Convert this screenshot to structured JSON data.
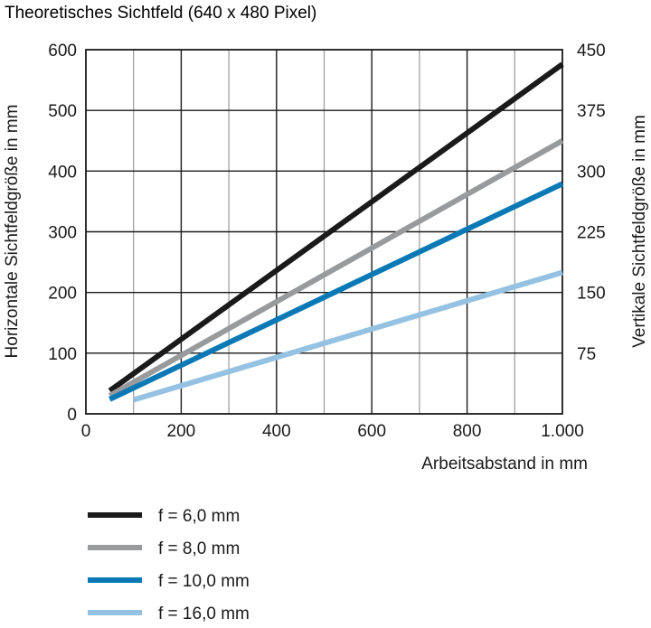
{
  "chart_data": {
    "type": "line",
    "title": "Theoretisches Sichtfeld (640 x 480 Pixel)",
    "xlabel": "Arbeitsabstand in mm",
    "ylabel": "Horizontale Sichtfeldgröße in mm",
    "y2label": "Vertikale Sichtfeldgröße in mm",
    "xlim": [
      0,
      1000
    ],
    "ylim": [
      0,
      600
    ],
    "y2lim": [
      0,
      450
    ],
    "x_ticks": [
      "0",
      "200",
      "400",
      "600",
      "800",
      "1.000"
    ],
    "y_ticks": [
      "0",
      "100",
      "200",
      "300",
      "400",
      "500",
      "600"
    ],
    "y2_ticks": [
      "75",
      "150",
      "225",
      "300",
      "375",
      "450"
    ],
    "grid": true,
    "legend_position": "bottom-left",
    "series": [
      {
        "name": "f = 6,0 mm",
        "color": "#1a1a1a",
        "x": [
          50,
          1000
        ],
        "y": [
          38,
          576
        ]
      },
      {
        "name": "f = 8,0 mm",
        "color": "#999a9c",
        "x": [
          50,
          1000
        ],
        "y": [
          30,
          450
        ]
      },
      {
        "name": "f = 10,0 mm",
        "color": "#0a79b6",
        "x": [
          50,
          1000
        ],
        "y": [
          24,
          379
        ]
      },
      {
        "name": "f = 16,0 mm",
        "color": "#95c2e3",
        "x": [
          100,
          1000
        ],
        "y": [
          23,
          233
        ]
      }
    ]
  }
}
